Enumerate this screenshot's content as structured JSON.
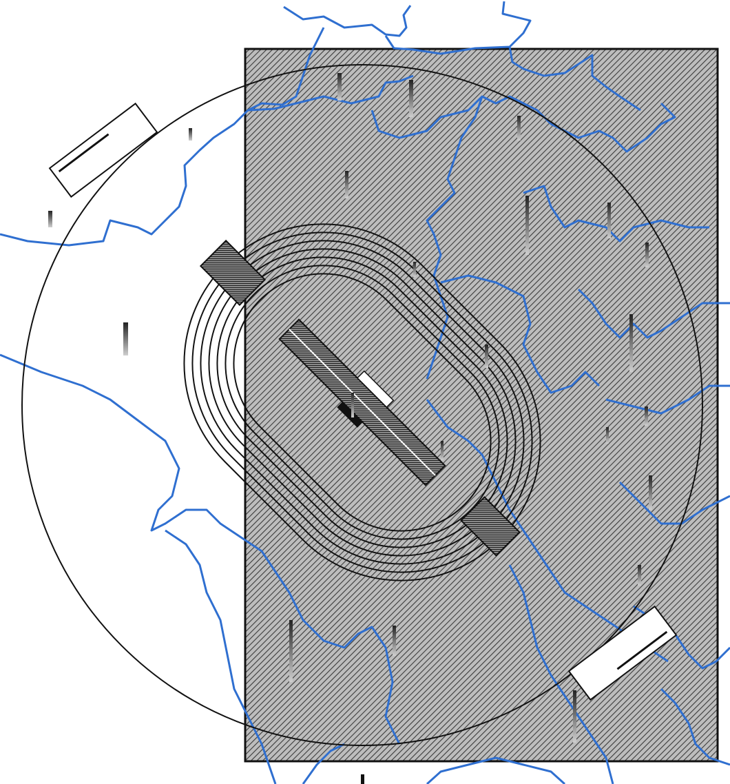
{
  "drawing": {
    "colors": {
      "background": "#ffffff",
      "linework": "#111111",
      "boundaries": "#2f6fd0",
      "hatch_fill": "#bdbdbd",
      "hatch_lines": "#3a3a3a"
    },
    "layers": [
      "boundary-lines",
      "hatched-rectangle",
      "outer-circle",
      "oval-track",
      "central-bar",
      "hatched-blocks",
      "small-rectangles",
      "vertical-markers"
    ],
    "track_lane_count": 7,
    "vertical_marker_count": 23
  }
}
